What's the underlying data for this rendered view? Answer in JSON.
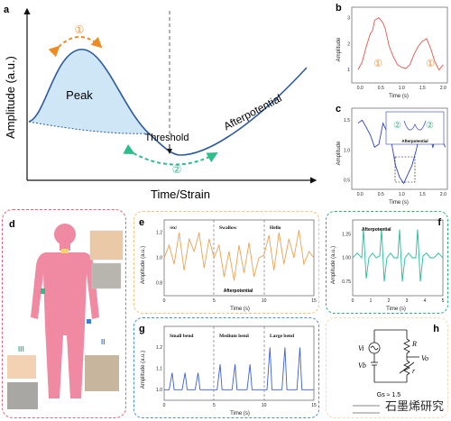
{
  "panel_letters": [
    "a",
    "b",
    "c",
    "d",
    "e",
    "f",
    "g",
    "h"
  ],
  "panel_a": {
    "ylabel": "Amplitude (a.u.)",
    "xlabel": "Time/Strain",
    "peak_label": "Peak",
    "threshold_label": "Threshold",
    "afterpotential_label": "Afterpotential",
    "marker_1": "①",
    "marker_2": "②"
  },
  "panel_b": {
    "ylabel": "Amplitude",
    "xlabel": "Time (s)",
    "marker": "①",
    "colors": {
      "line": "#e8554a",
      "marker": "#f08a24"
    }
  },
  "panel_c": {
    "ylabel": "Amplitude",
    "xlabel": "Time (s)",
    "inset_label": "Afterpotential",
    "marker": "②",
    "colors": {
      "line": "#2b3fcf",
      "marker": "#2dbd8a"
    }
  },
  "panel_d": {
    "label_ii": "II",
    "label_iii": "III"
  },
  "panel_e": {
    "ylabel": "Amplitude (a.u.)",
    "xlabel": "Time (s)",
    "segments": [
      "/ex/",
      "Swallow",
      "Hello"
    ],
    "annotation": "Afterpotential",
    "colors": {
      "line": "#f0a050",
      "frame": "#f6c27a"
    }
  },
  "panel_f": {
    "ylabel": "Amplitude (a.u.)",
    "xlabel": "Time (s)",
    "annotation": "Afterpotential",
    "colors": {
      "line": "#1fbf97",
      "frame": "#2bb573"
    }
  },
  "panel_g": {
    "ylabel": "Amplitude (a.u.)",
    "xlabel": "Time (s)",
    "segments": [
      "Small bend",
      "Medium bend",
      "Large bend"
    ],
    "colors": {
      "line": "#3d5fd6",
      "frame": "#4a8fd0"
    }
  },
  "panel_h": {
    "vi": "Vi",
    "r_upper": "R",
    "vb": "Vb",
    "r_lower": "r",
    "vo": "Vo",
    "gain": "Gs ≈ 1.5"
  },
  "watermark": "石墨烯研究",
  "chart_data": [
    {
      "type": "line",
      "panel": "b",
      "xlabel": "Time (s)",
      "ylabel": "Amplitude",
      "xticks": [
        "0.0",
        "0.5",
        "1.0",
        "1.5",
        "2.0"
      ],
      "yticks": [
        "1",
        "2",
        "3"
      ],
      "xlim": [
        -0.2,
        2.1
      ],
      "ylim": [
        0.5,
        3.4
      ],
      "x": [
        -0.05,
        0.05,
        0.15,
        0.25,
        0.3,
        0.35,
        0.45,
        0.55,
        0.6,
        0.7,
        0.8,
        0.9,
        1.0,
        1.1,
        1.2,
        1.3,
        1.4,
        1.5,
        1.6,
        1.7,
        1.8,
        1.9,
        2.0
      ],
      "y": [
        1.0,
        1.3,
        1.9,
        2.4,
        2.5,
        2.9,
        3.0,
        2.8,
        2.6,
        1.9,
        1.5,
        1.2,
        1.1,
        1.05,
        1.2,
        1.6,
        1.9,
        2.1,
        2.2,
        1.8,
        1.3,
        1.0,
        1.2
      ]
    },
    {
      "type": "line",
      "panel": "c",
      "xlabel": "Time (s)",
      "ylabel": "Amplitude",
      "xticks": [
        "0.0",
        "0.5",
        "1.0",
        "1.5",
        "2.0"
      ],
      "yticks": [
        "0.5",
        "1.0",
        "1.5"
      ],
      "xlim": [
        -0.2,
        2.1
      ],
      "ylim": [
        0.35,
        1.7
      ],
      "x": [
        -0.05,
        0.05,
        0.15,
        0.25,
        0.35,
        0.45,
        0.55,
        0.65,
        0.75,
        0.85,
        0.95,
        1.05,
        1.15,
        1.25,
        1.35,
        1.45,
        1.55,
        1.65,
        1.75,
        1.85,
        1.95,
        2.05
      ],
      "y": [
        1.45,
        1.5,
        1.38,
        1.25,
        1.05,
        1.1,
        1.45,
        1.3,
        1.15,
        0.75,
        0.55,
        0.45,
        0.6,
        0.75,
        1.0,
        1.3,
        1.45,
        1.3,
        1.05,
        1.3,
        1.2,
        1.05
      ]
    },
    {
      "type": "line",
      "panel": "e",
      "xlabel": "Time (s)",
      "ylabel": "Amplitude (a.u.)",
      "xticks": [
        "0",
        "5",
        "10",
        "15"
      ],
      "yticks": [
        "0.8",
        "1.0",
        "1.2"
      ],
      "xlim": [
        0,
        15
      ],
      "ylim": [
        0.7,
        1.3
      ],
      "x": [
        0,
        0.5,
        1,
        1.5,
        2,
        2.5,
        3,
        3.5,
        4,
        4.5,
        5,
        5.5,
        6,
        6.5,
        7,
        7.5,
        8,
        8.5,
        9,
        9.5,
        10,
        10.5,
        11,
        11.5,
        12,
        12.5,
        13,
        13.5,
        14,
        14.5,
        15
      ],
      "y": [
        1.0,
        1.1,
        0.95,
        1.2,
        0.9,
        1.15,
        1.05,
        1.2,
        0.92,
        1.15,
        1.0,
        1.1,
        0.85,
        1.05,
        0.82,
        1.1,
        0.88,
        1.12,
        0.85,
        1.0,
        1.02,
        1.18,
        0.9,
        1.2,
        0.95,
        1.15,
        1.0,
        1.22,
        0.95,
        1.05,
        1.0
      ]
    },
    {
      "type": "line",
      "panel": "f",
      "xlabel": "Time (s)",
      "ylabel": "Amplitude (a.u.)",
      "xticks": [
        "0",
        "1",
        "2",
        "3",
        "4",
        "5"
      ],
      "yticks": [
        "0.75",
        "1.00",
        "1.25"
      ],
      "xlim": [
        0,
        5
      ],
      "ylim": [
        0.6,
        1.4
      ],
      "x": [
        0,
        0.25,
        0.5,
        0.6,
        0.75,
        0.9,
        1.1,
        1.3,
        1.5,
        1.6,
        1.75,
        1.9,
        2.1,
        2.3,
        2.5,
        2.6,
        2.75,
        2.9,
        3.1,
        3.3,
        3.5,
        3.6,
        3.75,
        3.9,
        4.1,
        4.3,
        4.5,
        4.75,
        5.0
      ],
      "y": [
        1.0,
        1.05,
        1.0,
        1.3,
        0.78,
        1.0,
        1.05,
        1.0,
        1.02,
        1.3,
        0.75,
        1.0,
        1.05,
        1.0,
        1.0,
        1.3,
        0.75,
        1.0,
        1.05,
        1.0,
        1.0,
        1.3,
        0.75,
        1.02,
        1.05,
        1.0,
        1.0,
        1.05,
        1.0
      ]
    },
    {
      "type": "line",
      "panel": "g",
      "xlabel": "Time (s)",
      "ylabel": "Amplitude (a.u.)",
      "xticks": [
        "0",
        "5",
        "10",
        "15"
      ],
      "yticks": [
        "1.0",
        "1.1",
        "1.2"
      ],
      "xlim": [
        0,
        15
      ],
      "ylim": [
        0.95,
        1.3
      ],
      "x": [
        0,
        0.5,
        0.8,
        1.0,
        1.3,
        1.8,
        2.1,
        2.3,
        2.6,
        3.1,
        3.4,
        3.6,
        3.9,
        4.4,
        4.7,
        5.3,
        5.6,
        5.8,
        6.1,
        6.8,
        7.1,
        7.3,
        7.6,
        8.3,
        8.6,
        8.8,
        9.1,
        9.7,
        10.3,
        10.6,
        10.8,
        11.1,
        11.8,
        12.1,
        12.3,
        12.6,
        13.3,
        13.6,
        13.8,
        14.1,
        14.6,
        15.0
      ],
      "y": [
        1.0,
        1.0,
        1.08,
        1.0,
        1.0,
        1.0,
        1.08,
        1.0,
        1.0,
        1.0,
        1.08,
        1.0,
        1.0,
        1.0,
        1.0,
        1.0,
        1.12,
        1.0,
        1.0,
        1.0,
        1.12,
        1.0,
        1.0,
        1.0,
        1.12,
        1.0,
        1.0,
        1.0,
        1.0,
        1.2,
        1.0,
        1.0,
        1.0,
        1.2,
        1.0,
        1.0,
        1.0,
        1.2,
        1.0,
        1.0,
        1.0,
        1.0
      ]
    }
  ]
}
